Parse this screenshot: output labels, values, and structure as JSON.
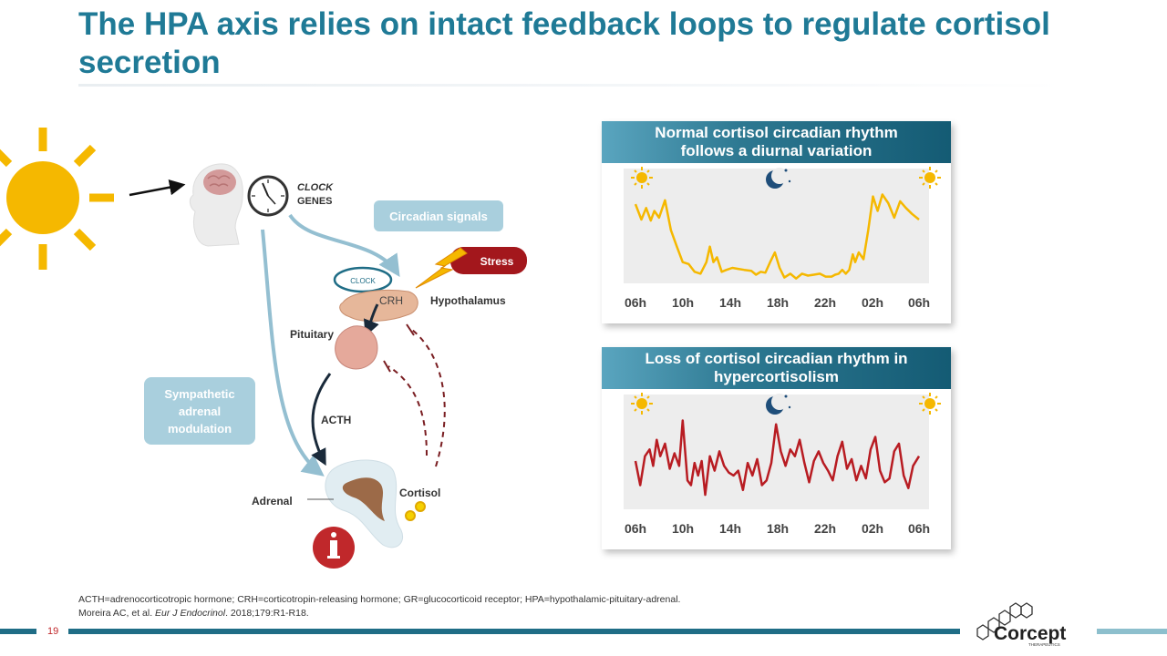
{
  "title": "The HPA axis relies on intact feedback loops to regulate cortisol secretion",
  "diagram": {
    "clock_genes": [
      "CLOCK",
      "GENES"
    ],
    "circadian_signals": "Circadian signals",
    "clock_small": "CLOCK",
    "stress": "Stress",
    "crh": "CRH",
    "hypothalamus": "Hypothalamus",
    "pituitary": "Pituitary",
    "sympathetic": [
      "Sympathetic",
      "adrenal",
      "modulation"
    ],
    "acth": "ACTH",
    "adrenal": "Adrenal",
    "cortisol": "Cortisol"
  },
  "panels": [
    {
      "title": "Normal cortisol circadian rhythm follows a diurnal variation",
      "color": "#f5b800",
      "x_labels": [
        "06h",
        "10h",
        "14h",
        "18h",
        "22h",
        "02h",
        "06h"
      ]
    },
    {
      "title": "Loss of cortisol circadian rhythm in hypercortisolism",
      "color": "#b81c22",
      "x_labels": [
        "06h",
        "10h",
        "14h",
        "18h",
        "22h",
        "02h",
        "06h"
      ]
    }
  ],
  "chart_data": [
    {
      "type": "line",
      "title": "Normal cortisol circadian rhythm follows a diurnal variation",
      "x_tick_labels": [
        "06h",
        "10h",
        "14h",
        "18h",
        "22h",
        "02h",
        "06h"
      ],
      "x_range_hours": [
        0,
        24
      ],
      "y_range": [
        0,
        1
      ],
      "y_axis_labeled": false,
      "x": [
        0,
        0.5,
        0.9,
        1.3,
        1.6,
        2.0,
        2.5,
        3.0,
        3.5,
        4.0,
        4.5,
        5.0,
        5.5,
        6.0,
        6.3,
        6.6,
        6.9,
        7.3,
        7.7,
        8.2,
        8.7,
        9.2,
        9.8,
        10.2,
        10.6,
        11.0,
        11.4,
        11.8,
        12.2,
        12.6,
        13.1,
        13.6,
        14.1,
        14.6,
        15.1,
        15.6,
        16.1,
        16.6,
        16.9,
        17.2,
        17.5,
        17.8,
        18.1,
        18.4,
        18.6,
        18.9,
        19.3,
        19.7,
        20.1,
        20.5,
        20.9,
        21.4,
        21.9,
        22.4,
        22.9,
        23.4,
        24.0
      ],
      "y": [
        0.82,
        0.66,
        0.78,
        0.65,
        0.75,
        0.68,
        0.86,
        0.55,
        0.38,
        0.22,
        0.2,
        0.12,
        0.1,
        0.22,
        0.38,
        0.22,
        0.27,
        0.12,
        0.14,
        0.16,
        0.15,
        0.14,
        0.13,
        0.09,
        0.12,
        0.11,
        0.22,
        0.32,
        0.16,
        0.06,
        0.1,
        0.05,
        0.1,
        0.08,
        0.09,
        0.1,
        0.07,
        0.07,
        0.09,
        0.1,
        0.14,
        0.1,
        0.14,
        0.3,
        0.22,
        0.32,
        0.25,
        0.55,
        0.9,
        0.75,
        0.92,
        0.83,
        0.68,
        0.85,
        0.78,
        0.72,
        0.66
      ]
    },
    {
      "type": "line",
      "title": "Loss of cortisol circadian rhythm in hypercortisolism",
      "x_tick_labels": [
        "06h",
        "10h",
        "14h",
        "18h",
        "22h",
        "02h",
        "06h"
      ],
      "x_range_hours": [
        0,
        24
      ],
      "y_range": [
        0,
        1
      ],
      "y_axis_labeled": false,
      "x": [
        0,
        0.4,
        0.8,
        1.2,
        1.5,
        1.8,
        2.1,
        2.5,
        2.9,
        3.3,
        3.7,
        4.0,
        4.4,
        4.7,
        5.0,
        5.3,
        5.6,
        5.9,
        6.3,
        6.7,
        7.1,
        7.5,
        7.9,
        8.3,
        8.7,
        9.1,
        9.5,
        9.9,
        10.3,
        10.7,
        11.1,
        11.5,
        11.9,
        12.3,
        12.7,
        13.1,
        13.5,
        13.9,
        14.3,
        14.7,
        15.1,
        15.5,
        15.9,
        16.3,
        16.7,
        17.1,
        17.5,
        17.9,
        18.3,
        18.7,
        19.1,
        19.5,
        19.9,
        20.3,
        20.7,
        21.1,
        21.5,
        21.9,
        22.3,
        22.7,
        23.1,
        23.5,
        24.0
      ],
      "y": [
        0.5,
        0.25,
        0.55,
        0.62,
        0.45,
        0.72,
        0.55,
        0.68,
        0.42,
        0.58,
        0.45,
        0.92,
        0.3,
        0.25,
        0.48,
        0.35,
        0.5,
        0.15,
        0.55,
        0.4,
        0.6,
        0.45,
        0.38,
        0.35,
        0.4,
        0.2,
        0.48,
        0.35,
        0.52,
        0.25,
        0.3,
        0.48,
        0.88,
        0.6,
        0.45,
        0.62,
        0.55,
        0.72,
        0.48,
        0.28,
        0.5,
        0.6,
        0.48,
        0.4,
        0.3,
        0.55,
        0.7,
        0.42,
        0.52,
        0.3,
        0.45,
        0.32,
        0.62,
        0.75,
        0.4,
        0.28,
        0.32,
        0.6,
        0.68,
        0.35,
        0.22,
        0.45,
        0.55
      ]
    }
  ],
  "footnote": {
    "line1": "ACTH=adrenocorticotropic hormone; CRH=corticotropin-releasing hormone; GR=glucocorticoid receptor; HPA=hypothalamic-pituitary-adrenal.",
    "line2_prefix": "Moreira AC, et al. ",
    "journal": "Eur J Endocrinol",
    "line2_suffix": ". 2018;179:R1-R18."
  },
  "page_number": "19",
  "logo": {
    "name": "Corcept",
    "tagline": "THERAPEUTICS"
  }
}
